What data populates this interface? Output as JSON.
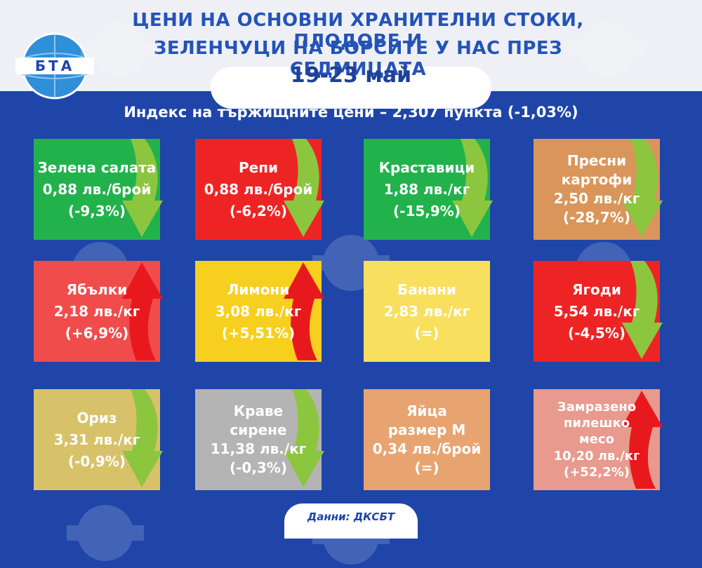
{
  "header": {
    "title_line1": "ЦЕНИ НА ОСНОВНИ ХРАНИТЕЛНИ СТОКИ, ПЛОДОВЕ И",
    "title_line2": "ЗЕЛЕНЧУЦИ НА БОРСИТЕ У НАС ПРЕЗ СЕДМИЦАТА",
    "date": "19-23 май",
    "logo_text": "БТА"
  },
  "index_text": "Индекс на тържищните цени – 2,307 пункта (-1,03%)",
  "colors": {
    "background": "#1f45a8",
    "green": "#22b24c",
    "red": "#ee2424",
    "arrow_green": "#8cc63f",
    "arrow_red": "#e8191c"
  },
  "items": [
    {
      "lines": [
        "Зелена салата",
        "0,88 лв./брой",
        "(-9,3%)"
      ],
      "color": "#22b24c",
      "trend": "down"
    },
    {
      "lines": [
        "Репи",
        "0,88 лв./брой",
        "(-6,2%)"
      ],
      "color": "#ee2424",
      "trend": "down"
    },
    {
      "lines": [
        "Краставици",
        "1,88 лв./кг",
        "(-15,9%)"
      ],
      "color": "#22b24c",
      "trend": "down"
    },
    {
      "lines": [
        "Пресни",
        "картофи",
        "2,50 лв./кг",
        "(-28,7%)"
      ],
      "color": "#d9955a",
      "trend": "down"
    },
    {
      "lines": [
        "Ябълки",
        "2,18 лв./кг",
        "(+6,9%)"
      ],
      "color": "#f04c4c",
      "trend": "up"
    },
    {
      "lines": [
        "Лимони",
        "3,08 лв./кг",
        "(+5,51%)"
      ],
      "color": "#f7cf1e",
      "trend": "up"
    },
    {
      "lines": [
        "Банани",
        "2,83 лв./кг",
        "(=)"
      ],
      "color": "#f8df5e",
      "trend": "none"
    },
    {
      "lines": [
        "Ягоди",
        "5,54 лв./кг",
        "(-4,5%)"
      ],
      "color": "#ee2424",
      "trend": "down"
    },
    {
      "lines": [
        "Ориз",
        "3,31 лв./кг",
        "(-0,9%)"
      ],
      "color": "#d8c269",
      "trend": "down"
    },
    {
      "lines": [
        "Краве",
        "сирене",
        "11,38 лв./кг",
        "(-0,3%)"
      ],
      "color": "#b4b4b4",
      "trend": "down"
    },
    {
      "lines": [
        "Яйца",
        "размер М",
        "0,34 лв./брой",
        "(=)"
      ],
      "color": "#e8a470",
      "trend": "none"
    },
    {
      "lines": [
        "Замразено",
        "пилешко",
        "месо",
        "10,20 лв./кг",
        "(+52,2%)"
      ],
      "color": "#e89a8e",
      "trend": "up"
    }
  ],
  "source": "Данни: ДКСБТ"
}
